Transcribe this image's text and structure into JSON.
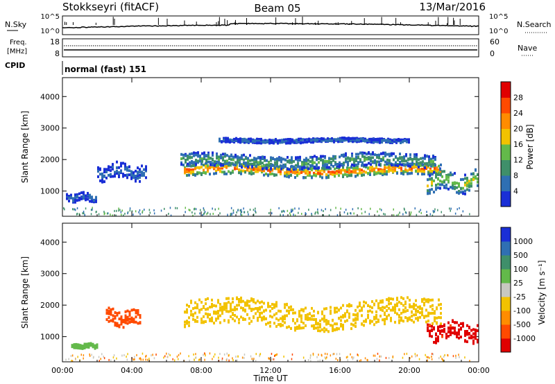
{
  "header": {
    "station": "Stokkseyri (fitACF)",
    "beam": "Beam 05",
    "date": "13/Mar/2016"
  },
  "strip_labels": {
    "nsky": "N.Sky",
    "nsearch": "N.Search",
    "freq_line1": "Freq.",
    "freq_line2": "[MHz]",
    "nave": "Nave",
    "cpid": "CPID",
    "cpid_value": "normal (fast) 151"
  },
  "strip_ticks": {
    "noise_left": [
      "10^5",
      "10^0"
    ],
    "noise_right": [
      "10^5",
      "10^0"
    ],
    "freq_left": [
      "18",
      "8"
    ],
    "nave_right": [
      "60",
      "0"
    ]
  },
  "colors": {
    "power_scale": [
      "#1a2fd6",
      "#2f6fb3",
      "#3f8f6a",
      "#63b94a",
      "#f2c200",
      "#ff8c00",
      "#ff4a00",
      "#e00000"
    ],
    "velocity_scale": [
      "#e00000",
      "#ff4a00",
      "#ff8c00",
      "#f2c200",
      "#c8c8c0",
      "#63b94a",
      "#3f8f6a",
      "#2f6fb3",
      "#1a2fd6"
    ],
    "noise_line": "#000000",
    "frame": "#000000"
  },
  "chart_data": [
    {
      "type": "heatmap",
      "name": "power",
      "ylabel": "Slant Range [km]",
      "ylim": [
        200,
        4600
      ],
      "xlim": [
        0,
        24
      ],
      "yticks": [
        "1000",
        "2000",
        "3000",
        "4000"
      ],
      "colorbar": {
        "label": "Power [dB]",
        "ticks": [
          "28",
          "24",
          "20",
          "16",
          "12",
          "8",
          "4"
        ],
        "range": [
          0,
          32
        ]
      },
      "features": [
        {
          "t_start": 7.0,
          "t_end": 21.8,
          "range_center": 1650,
          "width": 220,
          "value": 26
        },
        {
          "t_start": 6.8,
          "t_end": 21.5,
          "range_center": 1950,
          "width": 250,
          "value": 12
        },
        {
          "t_start": 9.0,
          "t_end": 20.0,
          "range_center": 2600,
          "width": 80,
          "value": 6
        },
        {
          "t_start": 0.2,
          "t_end": 2.0,
          "range_center": 800,
          "width": 150,
          "value": 6
        },
        {
          "t_start": 2.0,
          "t_end": 4.8,
          "range_center": 1600,
          "width": 300,
          "value": 6
        },
        {
          "t_start": 21.0,
          "t_end": 23.9,
          "range_center": 1300,
          "width": 400,
          "value": 16
        }
      ]
    },
    {
      "type": "heatmap",
      "name": "velocity",
      "ylabel": "Slant Range [km]",
      "xlabel": "Time UT",
      "ylim": [
        200,
        4600
      ],
      "xlim": [
        0,
        24
      ],
      "yticks": [
        "1000",
        "2000",
        "3000",
        "4000"
      ],
      "xticks": [
        "00:00",
        "04:00",
        "08:00",
        "12:00",
        "16:00",
        "20:00",
        "00:00"
      ],
      "colorbar": {
        "label": "Velocity [m s⁻¹]",
        "ticks": [
          "1000",
          "500",
          "100",
          "25",
          "-25",
          "-100",
          "-500",
          "-1000"
        ]
      },
      "features": [
        {
          "t_start": 7.0,
          "t_end": 21.8,
          "range_center": 1700,
          "width": 500,
          "value": 0
        },
        {
          "t_start": 2.5,
          "t_end": 4.5,
          "range_center": 1600,
          "width": 300,
          "value": -150
        },
        {
          "t_start": 0.5,
          "t_end": 2.0,
          "range_center": 700,
          "width": 80,
          "value": 200
        },
        {
          "t_start": 21.0,
          "t_end": 23.9,
          "range_center": 1150,
          "width": 350,
          "value": -700
        }
      ]
    }
  ]
}
